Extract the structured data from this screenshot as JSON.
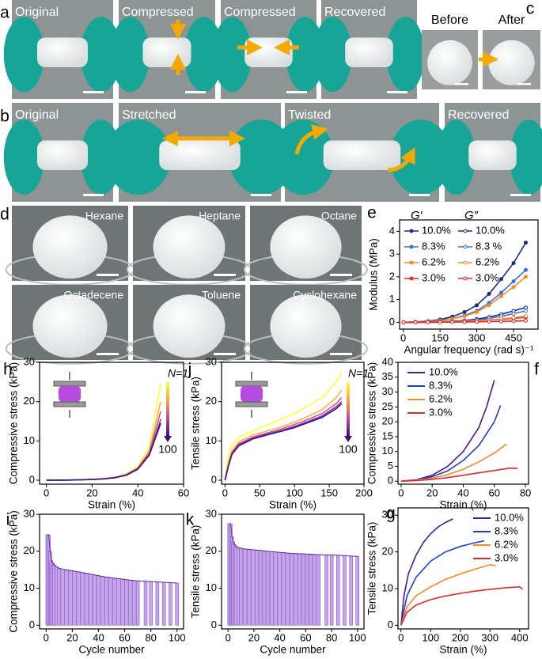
{
  "photo_panels": [
    {
      "letter": "a",
      "photos": [
        "Original",
        "Compressed",
        "Compressed",
        "Recovered"
      ]
    },
    {
      "letter": "c",
      "photos": [
        "Before",
        "After"
      ]
    },
    {
      "letter": "b",
      "photos": [
        "Original",
        "Stretched",
        "Twisted",
        "Recovered"
      ]
    },
    {
      "letter": "d",
      "photos": [
        "Hexane",
        "Heptane",
        "Octane",
        "Octadecene",
        "Toluene",
        "Cyclohexane"
      ]
    }
  ],
  "chart_data": [
    {
      "type": "line",
      "letter": "e",
      "xlabel": "Angular frequency (rad s)⁻¹",
      "ylabel": "Modulus (MPa)",
      "xlim": [
        -15,
        550
      ],
      "ylim": [
        -0.3,
        4.5
      ],
      "xticks": [
        0,
        150,
        300,
        450
      ],
      "yticks": [
        0,
        1,
        2,
        3,
        4
      ],
      "series_groups": [
        {
          "title": "G′",
          "marker": "filled",
          "series": [
            {
              "name": "10.0%",
              "color": "#1c2a80",
              "x": [
                1,
                50,
                100,
                150,
                200,
                250,
                300,
                350,
                400,
                450,
                500
              ],
              "values": [
                0,
                0.02,
                0.05,
                0.12,
                0.25,
                0.45,
                0.75,
                1.25,
                1.9,
                2.6,
                3.5
              ]
            },
            {
              "name": "8.3%",
              "color": "#3a6de0",
              "x": [
                1,
                50,
                100,
                150,
                200,
                250,
                300,
                350,
                400,
                450,
                500
              ],
              "values": [
                0,
                0.01,
                0.03,
                0.08,
                0.16,
                0.3,
                0.5,
                0.85,
                1.3,
                1.8,
                2.3
              ]
            },
            {
              "name": "6.2%",
              "color": "#f58a1f",
              "x": [
                1,
                50,
                100,
                150,
                200,
                250,
                300,
                350,
                400,
                450,
                500
              ],
              "values": [
                0,
                0.01,
                0.03,
                0.07,
                0.15,
                0.27,
                0.45,
                0.75,
                1.15,
                1.55,
                2.0
              ]
            },
            {
              "name": "3.0%",
              "color": "#e8262a",
              "x": [
                1,
                50,
                100,
                150,
                200,
                250,
                300,
                350,
                400,
                450,
                500
              ],
              "values": [
                0,
                0,
                0.01,
                0.02,
                0.03,
                0.05,
                0.07,
                0.1,
                0.13,
                0.17,
                0.22
              ]
            }
          ]
        },
        {
          "title": "G″",
          "marker": "open",
          "series": [
            {
              "name": "10.0%",
              "color": "#1c2a80",
              "x": [
                1,
                50,
                100,
                150,
                200,
                250,
                300,
                350,
                400,
                450,
                500
              ],
              "values": [
                0,
                0,
                0.01,
                0.02,
                0.04,
                0.08,
                0.14,
                0.23,
                0.35,
                0.5,
                0.65
              ]
            },
            {
              "name": "8.3 %",
              "color": "#3a6de0",
              "x": [
                1,
                50,
                100,
                150,
                200,
                250,
                300,
                350,
                400,
                450,
                500
              ],
              "values": [
                0,
                0,
                0.01,
                0.02,
                0.03,
                0.06,
                0.1,
                0.17,
                0.26,
                0.38,
                0.5
              ]
            },
            {
              "name": "6.2%",
              "color": "#f58a1f",
              "x": [
                1,
                50,
                100,
                150,
                200,
                250,
                300,
                350,
                400,
                450,
                500
              ],
              "values": [
                0,
                0,
                0,
                0.01,
                0.02,
                0.04,
                0.07,
                0.1,
                0.15,
                0.2,
                0.27
              ]
            },
            {
              "name": "3.0%",
              "color": "#e8262a",
              "x": [
                1,
                50,
                100,
                150,
                200,
                250,
                300,
                350,
                400,
                450,
                500
              ],
              "values": [
                0,
                0,
                0,
                0,
                0.01,
                0.01,
                0.02,
                0.03,
                0.04,
                0.05,
                0.07
              ]
            }
          ]
        }
      ]
    },
    {
      "type": "line",
      "letter": "h",
      "xlabel": "Strain (%)",
      "ylabel": "Compressive stress (kPa)",
      "xlim": [
        -3,
        60
      ],
      "ylim": [
        -1,
        30
      ],
      "xticks": [
        0,
        20,
        40,
        60
      ],
      "yticks": [
        0,
        10,
        20,
        30
      ],
      "colorbar": {
        "top": "N=1",
        "bottom": "100"
      },
      "series": [
        {
          "color": "#ffff33",
          "x": [
            0,
            5,
            10,
            15,
            20,
            25,
            30,
            35,
            40,
            45,
            50
          ],
          "values": [
            0,
            0.02,
            0.05,
            0.1,
            0.2,
            0.4,
            0.8,
            1.6,
            3.5,
            8.5,
            24.5
          ]
        },
        {
          "color": "#f7b04a",
          "x": [
            0,
            5,
            10,
            15,
            20,
            25,
            30,
            35,
            40,
            45,
            50
          ],
          "values": [
            0,
            0.02,
            0.05,
            0.1,
            0.2,
            0.38,
            0.75,
            1.5,
            3.2,
            7.5,
            20
          ]
        },
        {
          "color": "#d4578a",
          "x": [
            0,
            5,
            10,
            15,
            20,
            25,
            30,
            35,
            40,
            45,
            50
          ],
          "values": [
            0,
            0.02,
            0.05,
            0.1,
            0.19,
            0.36,
            0.7,
            1.4,
            3,
            7,
            17.5
          ]
        },
        {
          "color": "#8a2fb0",
          "x": [
            0,
            5,
            10,
            15,
            20,
            25,
            30,
            35,
            40,
            45,
            50
          ],
          "values": [
            0,
            0.02,
            0.05,
            0.1,
            0.18,
            0.35,
            0.68,
            1.35,
            2.9,
            6.6,
            15.5
          ]
        },
        {
          "color": "#3b1284",
          "x": [
            0,
            5,
            10,
            15,
            20,
            25,
            30,
            35,
            40,
            45,
            50
          ],
          "values": [
            0,
            0.02,
            0.05,
            0.1,
            0.18,
            0.34,
            0.66,
            1.3,
            2.8,
            6.4,
            14.5
          ]
        }
      ]
    },
    {
      "type": "line",
      "letter": "j",
      "xlabel": "Strain (%)",
      "ylabel": "Tensile stress (kPa)",
      "xlim": [
        -5,
        200
      ],
      "ylim": [
        -1,
        30
      ],
      "xticks": [
        0,
        50,
        100,
        150,
        200
      ],
      "yticks": [
        0,
        10,
        20,
        30
      ],
      "colorbar": {
        "top": "N=1",
        "bottom": "100"
      },
      "series": [
        {
          "color": "#ffff33",
          "x": [
            0,
            5,
            10,
            20,
            40,
            60,
            80,
            100,
            120,
            140,
            160,
            168
          ],
          "values": [
            0,
            6,
            9,
            11,
            12.5,
            14,
            15.5,
            17,
            19,
            21,
            25,
            27.5
          ]
        },
        {
          "color": "#f7b04a",
          "x": [
            0,
            5,
            10,
            20,
            40,
            60,
            80,
            100,
            120,
            140,
            160,
            168
          ],
          "values": [
            0,
            4.5,
            7.5,
            9.8,
            11.5,
            12.5,
            13.5,
            14.8,
            16.3,
            18,
            21,
            23
          ]
        },
        {
          "color": "#d4578a",
          "x": [
            0,
            5,
            10,
            20,
            40,
            60,
            80,
            100,
            120,
            140,
            160,
            168
          ],
          "values": [
            0,
            4,
            7,
            9.3,
            11,
            12,
            13,
            14.2,
            15.5,
            17,
            19.5,
            21
          ]
        },
        {
          "color": "#8a2fb0",
          "x": [
            0,
            5,
            10,
            20,
            40,
            60,
            80,
            100,
            120,
            140,
            160,
            168
          ],
          "values": [
            0,
            3.8,
            6.8,
            9,
            10.7,
            11.7,
            12.6,
            13.7,
            15,
            16.4,
            18.7,
            20
          ]
        },
        {
          "color": "#3b1284",
          "x": [
            0,
            5,
            10,
            20,
            40,
            60,
            80,
            100,
            120,
            140,
            160,
            168
          ],
          "values": [
            0,
            3.7,
            6.6,
            8.8,
            10.5,
            11.5,
            12.4,
            13.4,
            14.7,
            16,
            18.2,
            19.5
          ]
        }
      ]
    },
    {
      "type": "line",
      "letter": "f",
      "xlabel": "Strain (%)",
      "ylabel": "Compressive stress (kPa)",
      "xlim": [
        -2,
        82
      ],
      "ylim": [
        -1,
        40
      ],
      "xticks": [
        0,
        20,
        40,
        60,
        80
      ],
      "yticks": [
        0,
        5,
        10,
        15,
        20,
        25,
        30,
        35,
        40
      ],
      "legend": "upper left",
      "series": [
        {
          "name": "10.0%",
          "color": "#4a1a8c",
          "x": [
            0,
            10,
            20,
            30,
            40,
            50,
            55,
            60
          ],
          "values": [
            0,
            0.5,
            2,
            5,
            10,
            18,
            25,
            34
          ]
        },
        {
          "name": "8.3%",
          "color": "#1f3fd1",
          "x": [
            0,
            10,
            20,
            30,
            40,
            50,
            60,
            64
          ],
          "values": [
            0,
            0.4,
            1.5,
            3.5,
            7,
            12,
            20,
            25.5
          ]
        },
        {
          "name": "6.2%",
          "color": "#f5891f",
          "x": [
            0,
            10,
            20,
            30,
            40,
            50,
            60,
            68
          ],
          "values": [
            0,
            0.3,
            1,
            2.2,
            4,
            6.5,
            9.5,
            12.5
          ]
        },
        {
          "name": "3.0%",
          "color": "#e8262a",
          "x": [
            0,
            10,
            20,
            30,
            40,
            50,
            60,
            70,
            75
          ],
          "values": [
            0,
            0.2,
            0.6,
            1.2,
            2,
            2.8,
            3.6,
            4.4,
            4.3
          ]
        }
      ]
    },
    {
      "type": "bar",
      "letter": "i",
      "xlabel": "Cycle number",
      "ylabel": "Compressive stress (kPa)",
      "xlim": [
        -5,
        105
      ],
      "ylim": [
        -1,
        30
      ],
      "xticks": [
        0,
        20,
        40,
        60,
        80,
        100
      ],
      "yticks": [
        0,
        10,
        20,
        30
      ],
      "color": "#c7a3f0",
      "edge_color": "#5b2a9a",
      "x": [
        1,
        2,
        3,
        4,
        5,
        6,
        8,
        10,
        13,
        16,
        19,
        22,
        25,
        28,
        31,
        34,
        37,
        40,
        43,
        46,
        49,
        52,
        55,
        58,
        61,
        64,
        67,
        70,
        76,
        80,
        85,
        90,
        95,
        100
      ],
      "values": [
        24.5,
        24.4,
        20,
        17.5,
        16.8,
        16.3,
        15.8,
        15.4,
        15.1,
        15,
        14.8,
        14.6,
        14.4,
        14.2,
        14,
        13.8,
        13.6,
        13.4,
        13.2,
        13,
        12.9,
        12.7,
        12.6,
        12.5,
        12.3,
        12.2,
        12.1,
        12,
        11.9,
        11.8,
        11.7,
        11.6,
        11.5,
        11.4
      ]
    },
    {
      "type": "bar",
      "letter": "k",
      "xlabel": "Cycle number",
      "ylabel": "Tensile stress (kPa)",
      "xlim": [
        -5,
        105
      ],
      "ylim": [
        -1,
        30
      ],
      "xticks": [
        0,
        20,
        40,
        60,
        80,
        100
      ],
      "yticks": [
        0,
        10,
        20,
        30
      ],
      "color": "#c7a3f0",
      "edge_color": "#5b2a9a",
      "x": [
        1,
        2,
        3,
        4,
        5,
        6,
        8,
        10,
        13,
        16,
        19,
        22,
        25,
        28,
        31,
        34,
        37,
        40,
        43,
        46,
        49,
        52,
        55,
        58,
        61,
        64,
        67,
        70,
        76,
        80,
        85,
        90,
        95,
        100
      ],
      "values": [
        27.5,
        27.4,
        24,
        22.5,
        21.8,
        21.3,
        21,
        20.8,
        20.6,
        20.5,
        20.4,
        20.3,
        20.2,
        20.1,
        20,
        19.9,
        19.8,
        19.7,
        19.6,
        19.5,
        19.4,
        19.4,
        19.3,
        19.3,
        19.2,
        19.2,
        19.1,
        19.1,
        19,
        19,
        18.9,
        18.8,
        18.7,
        18.6
      ]
    },
    {
      "type": "line",
      "letter": "g",
      "xlabel": "Strain (%)",
      "ylabel": "Tensile stress (kPa)",
      "xlim": [
        -10,
        430
      ],
      "ylim": [
        -1,
        32
      ],
      "xticks": [
        0,
        100,
        200,
        300,
        400
      ],
      "yticks": [
        0,
        10,
        20,
        30
      ],
      "legend": "upper right",
      "series": [
        {
          "name": "10.0%",
          "color": "#4a1a8c",
          "x": [
            0,
            10,
            25,
            50,
            75,
            100,
            125,
            150,
            175
          ],
          "values": [
            0,
            8,
            14,
            19,
            22.5,
            25,
            26.8,
            28,
            29
          ]
        },
        {
          "name": "8.3%",
          "color": "#1f3fd1",
          "x": [
            0,
            20,
            50,
            100,
            150,
            200,
            250,
            280
          ],
          "values": [
            0,
            8,
            13,
            17.5,
            20,
            21.5,
            22.5,
            23
          ]
        },
        {
          "name": "6.2%",
          "color": "#f5891f",
          "x": [
            0,
            20,
            50,
            100,
            150,
            200,
            250,
            300,
            320
          ],
          "values": [
            0,
            5,
            8,
            10.5,
            12.5,
            14,
            15.3,
            16.5,
            16.3
          ]
        },
        {
          "name": "3.0%",
          "color": "#e8262a",
          "x": [
            0,
            20,
            50,
            100,
            150,
            200,
            250,
            300,
            350,
            400,
            410
          ],
          "values": [
            0,
            3.5,
            5.5,
            7,
            8,
            8.7,
            9.3,
            9.8,
            10.2,
            10.5,
            9.8
          ]
        }
      ]
    }
  ]
}
